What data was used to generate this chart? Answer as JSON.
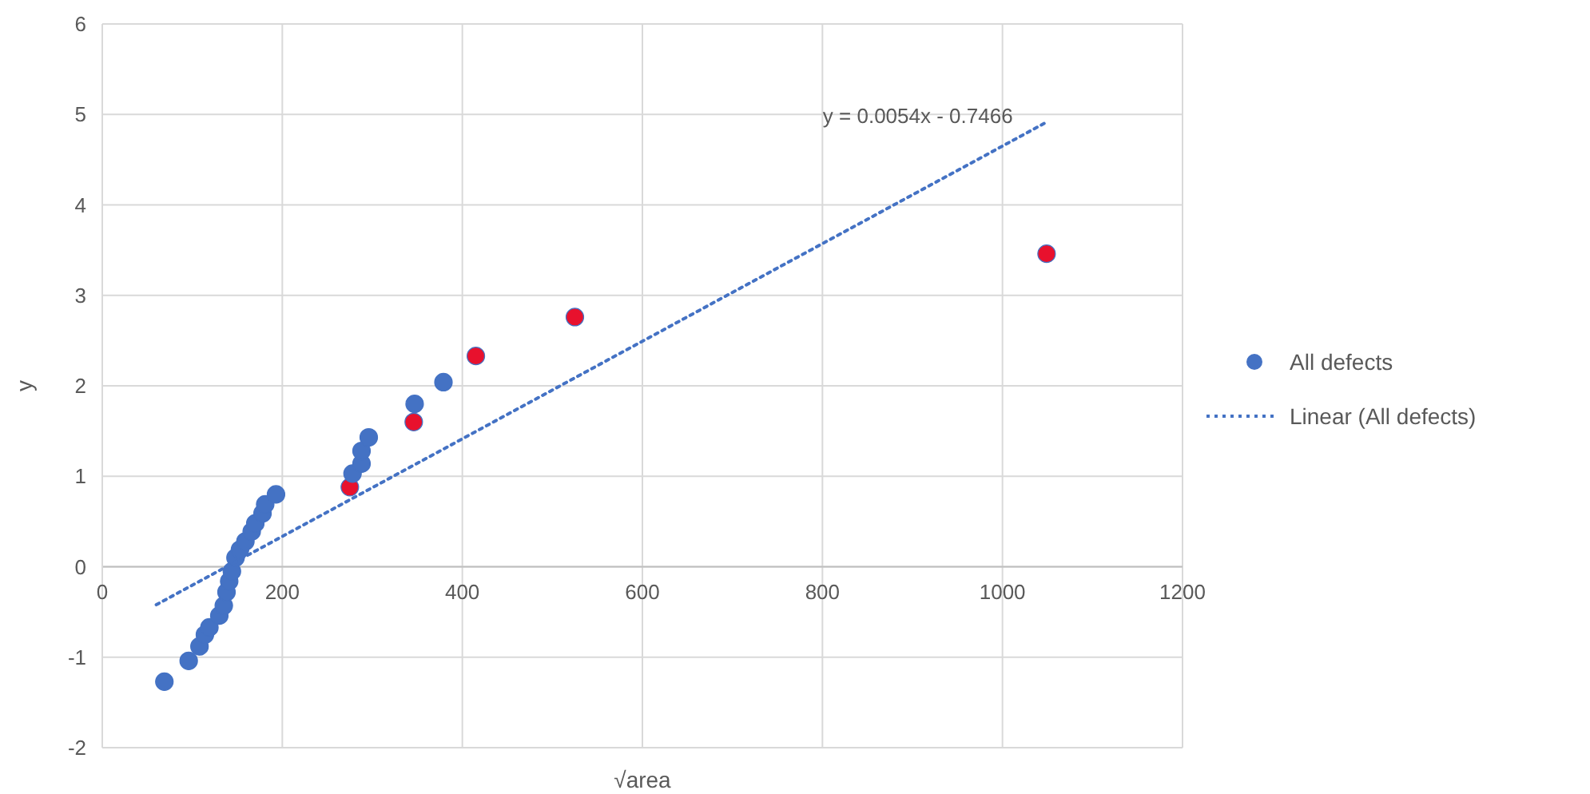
{
  "chart_data": {
    "type": "scatter",
    "xlabel": "√area",
    "ylabel": "y",
    "xlim": [
      0,
      1200
    ],
    "ylim": [
      -2,
      6
    ],
    "xticks": [
      0,
      200,
      400,
      600,
      800,
      1000,
      1200
    ],
    "yticks": [
      -2,
      -1,
      0,
      1,
      2,
      3,
      4,
      5,
      6
    ],
    "grid": true,
    "legend": "right",
    "marker": "circle",
    "annotations": [
      "y = 0.0054x - 0.7466"
    ],
    "series": [
      {
        "name": "All defects",
        "color": "#4472c4",
        "x": [
          69,
          96,
          108,
          114,
          119,
          130,
          135,
          138,
          141,
          144,
          148,
          153,
          159,
          166,
          170,
          178,
          181,
          193,
          275,
          278,
          288,
          288,
          296,
          346,
          347,
          379,
          415,
          525,
          1049
        ],
        "values": [
          -1.27,
          -1.04,
          -0.88,
          -0.75,
          -0.67,
          -0.54,
          -0.43,
          -0.28,
          -0.16,
          -0.05,
          0.1,
          0.19,
          0.28,
          0.39,
          0.48,
          0.59,
          0.69,
          0.8,
          0.88,
          1.03,
          1.14,
          1.28,
          1.43,
          1.6,
          1.8,
          2.04,
          2.33,
          2.76,
          3.46
        ],
        "colors": [
          "#4472c4",
          "#4472c4",
          "#4472c4",
          "#4472c4",
          "#4472c4",
          "#4472c4",
          "#4472c4",
          "#4472c4",
          "#4472c4",
          "#4472c4",
          "#4472c4",
          "#4472c4",
          "#4472c4",
          "#4472c4",
          "#4472c4",
          "#4472c4",
          "#4472c4",
          "#4472c4",
          "#e8112d",
          "#4472c4",
          "#4472c4",
          "#4472c4",
          "#4472c4",
          "#e8112d",
          "#4472c4",
          "#4472c4",
          "#e8112d",
          "#e8112d",
          "#e8112d"
        ]
      },
      {
        "name": "Linear (All defects)",
        "type": "line",
        "line_style": "dotted",
        "marker": "none",
        "color": "#4472c4",
        "x": [
          60,
          1050
        ],
        "values": [
          -0.42,
          4.92
        ]
      }
    ]
  }
}
